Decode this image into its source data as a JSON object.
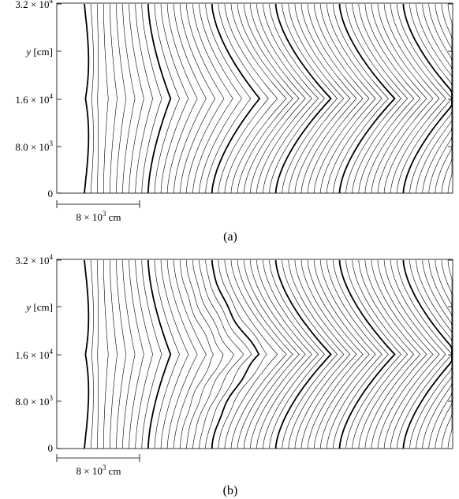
{
  "figure": {
    "panels": [
      {
        "caption": "(a)",
        "y_axis": {
          "label_var": "y",
          "label_unit": "[cm]",
          "ticks": [
            {
              "value": 32000,
              "mantissa": "3.2",
              "exp": "4"
            },
            {
              "value": 16000,
              "mantissa": "1.6",
              "exp": "4"
            },
            {
              "value": 8000,
              "mantissa": "8.0",
              "exp": "3"
            },
            {
              "value": 0,
              "mantissa": "0",
              "exp": ""
            }
          ]
        },
        "scale_bar": {
          "mantissa": "8",
          "exp": "3",
          "unit": "cm",
          "length_cm": 8000
        }
      },
      {
        "caption": "(b)",
        "y_axis": {
          "label_var": "y",
          "label_unit": "[cm]",
          "ticks": [
            {
              "value": 32000,
              "mantissa": "3.2",
              "exp": "4"
            },
            {
              "value": 16000,
              "mantissa": "1.6",
              "exp": "4"
            },
            {
              "value": 8000,
              "mantissa": "8.0",
              "exp": "3"
            },
            {
              "value": 0,
              "mantissa": "0",
              "exp": ""
            }
          ]
        },
        "scale_bar": {
          "mantissa": "8",
          "exp": "3",
          "unit": "cm",
          "length_cm": 8000
        }
      }
    ],
    "line_color": "#000000"
  }
}
